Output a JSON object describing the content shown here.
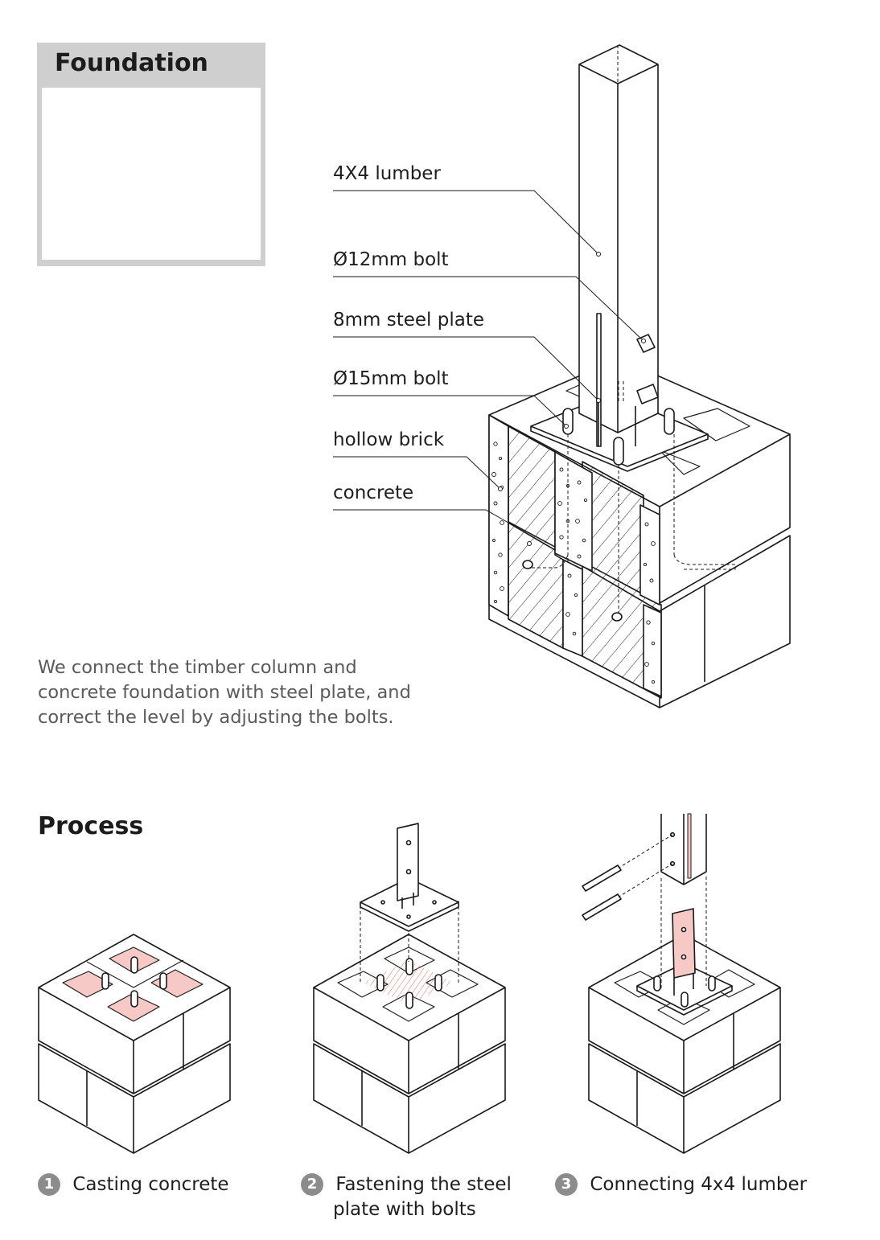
{
  "foundation_panel": {
    "title": "Foundation"
  },
  "callouts": [
    {
      "text": "4X4 lumber"
    },
    {
      "text": "Ø12mm bolt"
    },
    {
      "text": "8mm steel plate"
    },
    {
      "text": "Ø15mm bolt"
    },
    {
      "text": "hollow brick"
    },
    {
      "text": "concrete"
    }
  ],
  "description": [
    "We connect the timber column and",
    "concrete foundation with steel plate, and",
    "correct the level by adjusting the bolts."
  ],
  "process": {
    "title": "Process",
    "steps": [
      {
        "number": "1",
        "lines": [
          "Casting concrete"
        ]
      },
      {
        "number": "2",
        "lines": [
          "Fastening the steel",
          "plate with bolts"
        ]
      },
      {
        "number": "3",
        "lines": [
          "Connecting 4x4 lumber"
        ]
      }
    ]
  },
  "colors": {
    "highlight": "#f6c9c6",
    "highlight_stroke": "#d9534f",
    "line": "#1a1a1a",
    "panel_gray": "#cfcfcf"
  }
}
